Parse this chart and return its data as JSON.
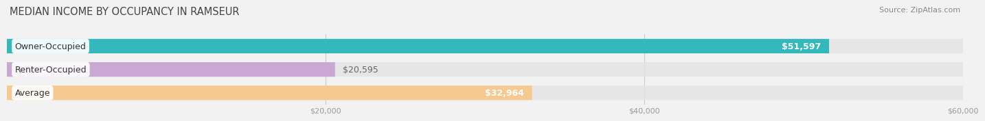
{
  "title": "MEDIAN INCOME BY OCCUPANCY IN RAMSEUR",
  "source": "Source: ZipAtlas.com",
  "categories": [
    "Owner-Occupied",
    "Renter-Occupied",
    "Average"
  ],
  "values": [
    51597,
    20595,
    32964
  ],
  "bar_colors": [
    "#35b8bc",
    "#c9a8d4",
    "#f5c990"
  ],
  "bar_bg_color": "#e4e4e4",
  "value_labels": [
    "$51,597",
    "$20,595",
    "$32,964"
  ],
  "xlim": [
    0,
    60000
  ],
  "xticks": [
    20000,
    40000,
    60000
  ],
  "xtick_labels": [
    "$20,000",
    "$40,000",
    "$60,000"
  ],
  "title_fontsize": 10.5,
  "bar_label_fontsize": 9,
  "value_fontsize": 9,
  "source_fontsize": 8,
  "background_color": "#f2f2f2",
  "bar_height": 0.62,
  "rounding_size": 0.04
}
